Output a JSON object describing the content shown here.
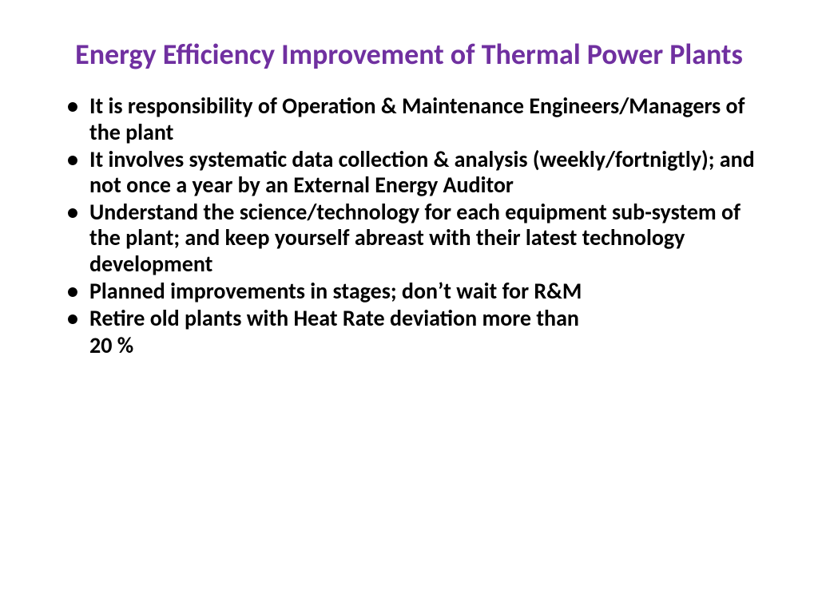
{
  "slide": {
    "title": "Energy Efficiency Improvement of Thermal Power Plants",
    "title_color": "#7030a0",
    "title_fontsize": 36,
    "body_color": "#000000",
    "body_fontsize": 28,
    "bullet_color": "#000000",
    "background_color": "#ffffff",
    "bullets": [
      "It is responsibility of Operation & Maintenance Engineers/Managers of the plant",
      "It involves systematic data collection & analysis (weekly/fortnigtly); and not once a year by an External Energy Auditor",
      "Understand the science/technology for each equipment sub-system of the plant; and keep yourself abreast with their latest technology development",
      "Planned improvements in stages; don’t wait for R&M",
      "Retire old plants with Heat Rate deviation more than"
    ],
    "trailing_line": "20 %"
  }
}
